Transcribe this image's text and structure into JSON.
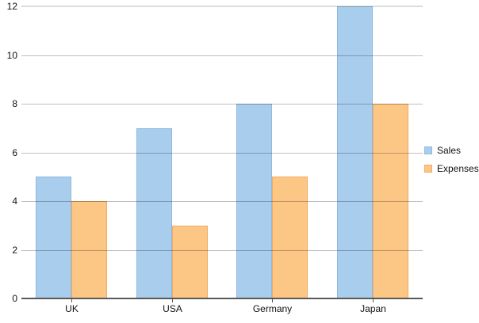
{
  "chart_data": {
    "type": "bar",
    "title": "",
    "xlabel": "",
    "ylabel": "",
    "categories": [
      "UK",
      "USA",
      "Germany",
      "Japan"
    ],
    "series": [
      {
        "name": "Sales",
        "values": [
          5,
          7,
          8,
          12
        ],
        "fill": "#a9cdec",
        "stroke": "#8fb9e0"
      },
      {
        "name": "Expenses",
        "values": [
          4,
          3,
          5,
          8
        ],
        "fill": "#fcc685",
        "stroke": "#f3ab63"
      }
    ],
    "ylim": [
      0,
      12
    ],
    "yticks": [
      0,
      2,
      4,
      6,
      8,
      10,
      12
    ],
    "grid": true,
    "legend_position": "right"
  },
  "colors": {
    "background": "#ffffff",
    "gridline": "rgba(0,0,0,0.25)",
    "gridline_top": "rgba(0,0,0,0.14)",
    "axis": "#595959",
    "text": "#111111"
  }
}
